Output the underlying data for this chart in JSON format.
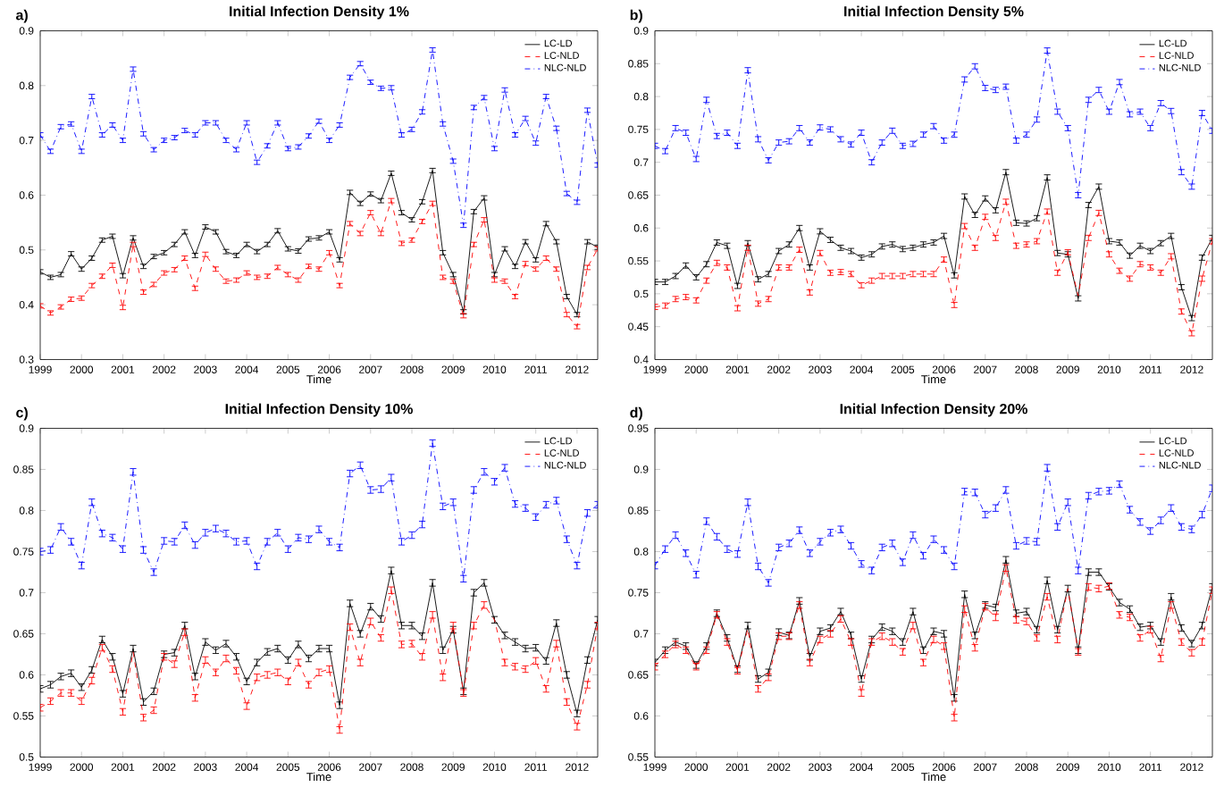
{
  "chart_data": [
    {
      "type": "line",
      "title": "Initial Infection Density 1%",
      "xlabel": "Time",
      "annotations": [
        "a)"
      ],
      "legend": "top right",
      "x": [
        1999,
        1999.25,
        1999.5,
        1999.75,
        2000,
        2000.25,
        2000.5,
        2000.75,
        2001,
        2001.25,
        2001.5,
        2001.75,
        2002,
        2002.25,
        2002.5,
        2002.75,
        2003,
        2003.25,
        2003.5,
        2003.75,
        2004,
        2004.25,
        2004.5,
        2004.75,
        2005,
        2005.25,
        2005.5,
        2005.75,
        2006,
        2006.25,
        2006.5,
        2006.75,
        2007,
        2007.25,
        2007.5,
        2007.75,
        2008,
        2008.25,
        2008.5,
        2008.75,
        2009,
        2009.25,
        2009.5,
        2009.75,
        2010,
        2010.25,
        2010.5,
        2010.75,
        2011,
        2011.25,
        2011.5,
        2011.75,
        2012,
        2012.25,
        2012.5
      ],
      "xlim": [
        1999,
        2012.5
      ],
      "ylim": [
        0.3,
        0.9
      ],
      "xticks": [
        1999,
        2000,
        2001,
        2002,
        2003,
        2004,
        2005,
        2006,
        2007,
        2008,
        2009,
        2010,
        2011,
        2012
      ],
      "yticks": [
        0.3,
        0.4,
        0.5,
        0.6,
        0.7,
        0.8,
        0.9
      ],
      "series": [
        {
          "name": "LC-LD",
          "color": "#000000",
          "line_style": "solid",
          "values": [
            0.46,
            0.45,
            0.455,
            0.493,
            0.465,
            0.485,
            0.518,
            0.525,
            0.453,
            0.522,
            0.47,
            0.488,
            0.495,
            0.51,
            0.533,
            0.49,
            0.542,
            0.533,
            0.497,
            0.49,
            0.51,
            0.497,
            0.51,
            0.535,
            0.502,
            0.498,
            0.52,
            0.522,
            0.533,
            0.482,
            0.605,
            0.585,
            0.602,
            0.59,
            0.64,
            0.568,
            0.555,
            0.588,
            0.645,
            0.495,
            0.455,
            0.387,
            0.57,
            0.595,
            0.455,
            0.502,
            0.47,
            0.515,
            0.482,
            0.548,
            0.515,
            0.415,
            0.382,
            0.515,
            0.505
          ],
          "errors": [
            0.004,
            0.004,
            0.004,
            0.004,
            0.004,
            0.004,
            0.004,
            0.004,
            0.004,
            0.004,
            0.004,
            0.004,
            0.004,
            0.004,
            0.004,
            0.004,
            0.004,
            0.004,
            0.004,
            0.004,
            0.004,
            0.004,
            0.004,
            0.004,
            0.004,
            0.004,
            0.004,
            0.004,
            0.004,
            0.004,
            0.004,
            0.004,
            0.004,
            0.004,
            0.004,
            0.004,
            0.004,
            0.004,
            0.004,
            0.004,
            0.004,
            0.004,
            0.004,
            0.004,
            0.004,
            0.004,
            0.004,
            0.004,
            0.004,
            0.004,
            0.004,
            0.004,
            0.004,
            0.004,
            0.004
          ]
        },
        {
          "name": "LC-NLD",
          "color": "#ff0000",
          "line_style": "dashed",
          "values": [
            0.398,
            0.385,
            0.396,
            0.41,
            0.412,
            0.435,
            0.452,
            0.472,
            0.395,
            0.51,
            0.423,
            0.437,
            0.458,
            0.464,
            0.485,
            0.43,
            0.492,
            0.465,
            0.443,
            0.445,
            0.458,
            0.45,
            0.452,
            0.468,
            0.455,
            0.445,
            0.47,
            0.465,
            0.495,
            0.435,
            0.548,
            0.53,
            0.568,
            0.53,
            0.59,
            0.512,
            0.518,
            0.552,
            0.585,
            0.45,
            0.443,
            0.38,
            0.51,
            0.555,
            0.445,
            0.443,
            0.415,
            0.475,
            0.465,
            0.485,
            0.465,
            0.382,
            0.36,
            0.468,
            0.502
          ],
          "errors": [
            0.004,
            0.004,
            0.004,
            0.004,
            0.004,
            0.004,
            0.004,
            0.004,
            0.004,
            0.004,
            0.004,
            0.004,
            0.004,
            0.004,
            0.004,
            0.004,
            0.004,
            0.004,
            0.004,
            0.004,
            0.004,
            0.004,
            0.004,
            0.004,
            0.004,
            0.004,
            0.004,
            0.004,
            0.004,
            0.004,
            0.004,
            0.004,
            0.004,
            0.004,
            0.004,
            0.004,
            0.004,
            0.004,
            0.004,
            0.004,
            0.004,
            0.004,
            0.004,
            0.004,
            0.004,
            0.004,
            0.004,
            0.004,
            0.004,
            0.004,
            0.004,
            0.004,
            0.004,
            0.004,
            0.004
          ]
        },
        {
          "name": "NLC-NLD",
          "color": "#0000ff",
          "line_style": "dashdot",
          "values": [
            0.71,
            0.68,
            0.725,
            0.73,
            0.68,
            0.78,
            0.71,
            0.728,
            0.7,
            0.83,
            0.712,
            0.683,
            0.7,
            0.705,
            0.718,
            0.71,
            0.732,
            0.732,
            0.7,
            0.683,
            0.732,
            0.66,
            0.69,
            0.732,
            0.685,
            0.688,
            0.708,
            0.735,
            0.7,
            0.728,
            0.815,
            0.84,
            0.806,
            0.795,
            0.796,
            0.71,
            0.72,
            0.752,
            0.865,
            0.73,
            0.662,
            0.545,
            0.76,
            0.778,
            0.685,
            0.792,
            0.71,
            0.74,
            0.695,
            0.78,
            0.722,
            0.603,
            0.587,
            0.755,
            0.655
          ],
          "errors": [
            0.004,
            0.004,
            0.004,
            0.004,
            0.004,
            0.004,
            0.004,
            0.004,
            0.004,
            0.004,
            0.004,
            0.004,
            0.004,
            0.004,
            0.004,
            0.004,
            0.004,
            0.004,
            0.004,
            0.004,
            0.004,
            0.004,
            0.004,
            0.004,
            0.004,
            0.004,
            0.004,
            0.004,
            0.004,
            0.004,
            0.004,
            0.004,
            0.004,
            0.004,
            0.004,
            0.004,
            0.004,
            0.004,
            0.004,
            0.004,
            0.004,
            0.004,
            0.004,
            0.004,
            0.004,
            0.004,
            0.004,
            0.004,
            0.004,
            0.004,
            0.004,
            0.004,
            0.004,
            0.004,
            0.004
          ]
        }
      ]
    },
    {
      "type": "line",
      "title": "Initial Infection Density 5%",
      "xlabel": "Time",
      "annotations": [
        "b)"
      ],
      "legend": "top right",
      "x": [
        1999,
        1999.25,
        1999.5,
        1999.75,
        2000,
        2000.25,
        2000.5,
        2000.75,
        2001,
        2001.25,
        2001.5,
        2001.75,
        2002,
        2002.25,
        2002.5,
        2002.75,
        2003,
        2003.25,
        2003.5,
        2003.75,
        2004,
        2004.25,
        2004.5,
        2004.75,
        2005,
        2005.25,
        2005.5,
        2005.75,
        2006,
        2006.25,
        2006.5,
        2006.75,
        2007,
        2007.25,
        2007.5,
        2007.75,
        2008,
        2008.25,
        2008.5,
        2008.75,
        2009,
        2009.25,
        2009.5,
        2009.75,
        2010,
        2010.25,
        2010.5,
        2010.75,
        2011,
        2011.25,
        2011.5,
        2011.75,
        2012,
        2012.25,
        2012.5
      ],
      "xlim": [
        1999,
        2012.5
      ],
      "ylim": [
        0.4,
        0.9
      ],
      "xticks": [
        1999,
        2000,
        2001,
        2002,
        2003,
        2004,
        2005,
        2006,
        2007,
        2008,
        2009,
        2010,
        2011,
        2012
      ],
      "yticks": [
        0.4,
        0.45,
        0.5,
        0.55,
        0.6,
        0.65,
        0.7,
        0.75,
        0.8,
        0.85,
        0.9
      ],
      "series": [
        {
          "name": "LC-LD",
          "color": "#000000",
          "line_style": "solid",
          "values": [
            0.518,
            0.518,
            0.527,
            0.543,
            0.525,
            0.545,
            0.578,
            0.573,
            0.512,
            0.577,
            0.522,
            0.53,
            0.565,
            0.575,
            0.6,
            0.54,
            0.595,
            0.582,
            0.57,
            0.565,
            0.555,
            0.56,
            0.572,
            0.575,
            0.568,
            0.57,
            0.575,
            0.578,
            0.588,
            0.528,
            0.648,
            0.62,
            0.645,
            0.627,
            0.685,
            0.608,
            0.607,
            0.615,
            0.677,
            0.562,
            0.56,
            0.493,
            0.635,
            0.663,
            0.58,
            0.578,
            0.558,
            0.573,
            0.565,
            0.577,
            0.588,
            0.51,
            0.463,
            0.555,
            0.585
          ],
          "errors": [
            0.004,
            0.004,
            0.004,
            0.004,
            0.004,
            0.004,
            0.004,
            0.004,
            0.004,
            0.004,
            0.004,
            0.004,
            0.004,
            0.004,
            0.004,
            0.004,
            0.004,
            0.004,
            0.004,
            0.004,
            0.004,
            0.004,
            0.004,
            0.004,
            0.004,
            0.004,
            0.004,
            0.004,
            0.004,
            0.004,
            0.004,
            0.004,
            0.004,
            0.004,
            0.004,
            0.004,
            0.004,
            0.004,
            0.004,
            0.004,
            0.004,
            0.004,
            0.004,
            0.004,
            0.004,
            0.004,
            0.004,
            0.004,
            0.004,
            0.004,
            0.004,
            0.004,
            0.004,
            0.004,
            0.004
          ]
        },
        {
          "name": "LC-NLD",
          "color": "#ff0000",
          "line_style": "dashed",
          "values": [
            0.48,
            0.482,
            0.492,
            0.495,
            0.49,
            0.52,
            0.547,
            0.54,
            0.478,
            0.57,
            0.485,
            0.492,
            0.54,
            0.54,
            0.567,
            0.502,
            0.562,
            0.532,
            0.533,
            0.53,
            0.513,
            0.52,
            0.527,
            0.527,
            0.527,
            0.53,
            0.53,
            0.53,
            0.552,
            0.483,
            0.603,
            0.57,
            0.617,
            0.585,
            0.64,
            0.573,
            0.575,
            0.58,
            0.625,
            0.532,
            0.563,
            0.497,
            0.585,
            0.623,
            0.56,
            0.535,
            0.523,
            0.545,
            0.54,
            0.532,
            0.557,
            0.473,
            0.44,
            0.523,
            0.58
          ],
          "errors": [
            0.004,
            0.004,
            0.004,
            0.004,
            0.004,
            0.004,
            0.004,
            0.004,
            0.004,
            0.004,
            0.004,
            0.004,
            0.004,
            0.004,
            0.004,
            0.004,
            0.004,
            0.004,
            0.004,
            0.004,
            0.004,
            0.004,
            0.004,
            0.004,
            0.004,
            0.004,
            0.004,
            0.004,
            0.004,
            0.004,
            0.004,
            0.004,
            0.004,
            0.004,
            0.004,
            0.004,
            0.004,
            0.004,
            0.004,
            0.004,
            0.004,
            null,
            0.004,
            0.004,
            0.004,
            0.004,
            0.004,
            0.004,
            0.004,
            0.004,
            0.004,
            0.004,
            0.004,
            0.004,
            0.004
          ]
        },
        {
          "name": "NLC-NLD",
          "color": "#0000ff",
          "line_style": "dashdot",
          "values": [
            0.725,
            0.717,
            0.752,
            0.745,
            0.705,
            0.795,
            0.74,
            0.745,
            0.725,
            0.84,
            0.735,
            0.703,
            0.73,
            0.732,
            0.752,
            0.73,
            0.753,
            0.75,
            0.735,
            0.727,
            0.745,
            0.7,
            0.73,
            0.748,
            0.725,
            0.728,
            0.742,
            0.755,
            0.733,
            0.742,
            0.826,
            0.846,
            0.813,
            0.81,
            0.815,
            0.733,
            0.742,
            0.765,
            0.87,
            0.777,
            0.752,
            0.65,
            0.795,
            0.81,
            0.777,
            0.822,
            0.773,
            0.777,
            0.752,
            0.79,
            0.778,
            0.685,
            0.663,
            0.775,
            0.748
          ],
          "errors": [
            0.004,
            0.004,
            0.004,
            0.004,
            0.004,
            0.004,
            0.004,
            0.004,
            0.004,
            0.004,
            0.004,
            0.004,
            0.004,
            0.004,
            0.004,
            0.004,
            0.004,
            0.004,
            0.004,
            0.004,
            0.004,
            0.004,
            0.004,
            0.004,
            0.004,
            0.004,
            0.004,
            0.004,
            0.004,
            0.004,
            0.004,
            0.004,
            0.004,
            0.004,
            0.004,
            0.004,
            0.004,
            0.004,
            0.004,
            0.004,
            0.004,
            0.004,
            0.004,
            0.004,
            0.004,
            0.004,
            0.004,
            0.004,
            0.004,
            0.004,
            0.004,
            0.004,
            0.004,
            0.004,
            0.004
          ]
        }
      ]
    },
    {
      "type": "line",
      "title": "Initial Infection Density 10%",
      "xlabel": "Time",
      "annotations": [
        "c)"
      ],
      "legend": "top right",
      "x": [
        1999,
        1999.25,
        1999.5,
        1999.75,
        2000,
        2000.25,
        2000.5,
        2000.75,
        2001,
        2001.25,
        2001.5,
        2001.75,
        2002,
        2002.25,
        2002.5,
        2002.75,
        2003,
        2003.25,
        2003.5,
        2003.75,
        2004,
        2004.25,
        2004.5,
        2004.75,
        2005,
        2005.25,
        2005.5,
        2005.75,
        2006,
        2006.25,
        2006.5,
        2006.75,
        2007,
        2007.25,
        2007.5,
        2007.75,
        2008,
        2008.25,
        2008.5,
        2008.75,
        2009,
        2009.25,
        2009.5,
        2009.75,
        2010,
        2010.25,
        2010.5,
        2010.75,
        2011,
        2011.25,
        2011.5,
        2011.75,
        2012,
        2012.25,
        2012.5
      ],
      "xlim": [
        1999,
        2012.5
      ],
      "ylim": [
        0.5,
        0.9
      ],
      "xticks": [
        1999,
        2000,
        2001,
        2002,
        2003,
        2004,
        2005,
        2006,
        2007,
        2008,
        2009,
        2010,
        2011,
        2012
      ],
      "yticks": [
        0.5,
        0.55,
        0.6,
        0.65,
        0.7,
        0.75,
        0.8,
        0.85,
        0.9
      ],
      "series": [
        {
          "name": "LC-LD",
          "color": "#000000",
          "line_style": "solid",
          "values": [
            0.583,
            0.588,
            0.598,
            0.602,
            0.585,
            0.606,
            0.643,
            0.622,
            0.577,
            0.632,
            0.567,
            0.58,
            0.625,
            0.627,
            0.66,
            0.598,
            0.64,
            0.63,
            0.638,
            0.622,
            0.592,
            0.615,
            0.628,
            0.632,
            0.618,
            0.637,
            0.62,
            0.632,
            0.632,
            0.563,
            0.687,
            0.65,
            0.683,
            0.668,
            0.727,
            0.66,
            0.66,
            0.647,
            0.712,
            0.63,
            0.655,
            0.58,
            0.7,
            0.712,
            0.667,
            0.648,
            0.64,
            0.632,
            0.633,
            0.617,
            0.663,
            0.6,
            0.553,
            0.618,
            0.667
          ],
          "errors": [
            0.004,
            0.004,
            0.004,
            0.004,
            0.004,
            0.004,
            0.004,
            0.004,
            0.004,
            0.004,
            0.004,
            0.004,
            0.004,
            0.004,
            0.004,
            0.004,
            0.004,
            0.004,
            0.004,
            0.004,
            0.004,
            0.004,
            0.004,
            0.004,
            0.004,
            0.004,
            0.004,
            0.004,
            0.004,
            0.004,
            0.004,
            0.004,
            0.004,
            0.004,
            0.004,
            0.004,
            0.004,
            0.004,
            0.004,
            0.004,
            0.004,
            0.004,
            0.004,
            0.004,
            0.004,
            0.004,
            0.004,
            0.004,
            0.004,
            0.004,
            0.004,
            0.004,
            0.004,
            0.004,
            0.004
          ]
        },
        {
          "name": "LC-NLD",
          "color": "#ff0000",
          "line_style": "dashed",
          "values": [
            0.56,
            0.568,
            0.578,
            0.578,
            0.568,
            0.593,
            0.633,
            0.607,
            0.555,
            0.628,
            0.548,
            0.557,
            0.622,
            0.613,
            0.652,
            0.572,
            0.618,
            0.603,
            0.62,
            0.605,
            0.562,
            0.597,
            0.6,
            0.603,
            0.592,
            0.615,
            0.588,
            0.603,
            0.607,
            0.533,
            0.658,
            0.615,
            0.665,
            0.645,
            0.703,
            0.637,
            0.638,
            0.622,
            0.673,
            0.597,
            0.66,
            0.578,
            0.66,
            0.685,
            0.667,
            0.615,
            0.61,
            0.607,
            0.617,
            0.583,
            0.638,
            0.567,
            0.537,
            0.588,
            0.66
          ],
          "errors": [
            0.004,
            0.004,
            0.004,
            0.004,
            0.004,
            0.004,
            0.004,
            0.004,
            0.004,
            null,
            0.004,
            0.004,
            0.004,
            0.004,
            0.004,
            0.004,
            0.004,
            0.004,
            0.004,
            0.004,
            0.004,
            0.004,
            0.004,
            0.004,
            0.004,
            0.004,
            0.004,
            0.004,
            0.004,
            0.004,
            0.004,
            0.004,
            0.004,
            0.004,
            0.004,
            0.004,
            0.004,
            0.004,
            0.004,
            0.004,
            0.004,
            0.004,
            0.004,
            0.004,
            null,
            0.004,
            0.004,
            0.004,
            0.004,
            0.004,
            0.004,
            0.004,
            0.004,
            0.004,
            0.004
          ]
        },
        {
          "name": "NLC-NLD",
          "color": "#0000ff",
          "line_style": "dashdot",
          "values": [
            0.75,
            0.752,
            0.78,
            0.762,
            0.733,
            0.81,
            0.772,
            0.767,
            0.753,
            0.847,
            0.752,
            0.725,
            0.763,
            0.762,
            0.782,
            0.758,
            0.773,
            0.778,
            0.772,
            0.762,
            0.763,
            0.732,
            0.762,
            0.773,
            0.753,
            0.767,
            0.765,
            0.777,
            0.762,
            0.755,
            0.845,
            0.855,
            0.825,
            0.826,
            0.84,
            0.762,
            0.77,
            0.783,
            0.882,
            0.805,
            0.81,
            0.717,
            0.825,
            0.847,
            0.835,
            0.852,
            0.808,
            0.803,
            0.792,
            0.807,
            0.812,
            0.765,
            0.733,
            0.797,
            0.807
          ],
          "errors": [
            0.004,
            0.004,
            0.004,
            0.004,
            0.004,
            0.004,
            0.004,
            0.004,
            0.004,
            0.004,
            0.004,
            0.004,
            0.004,
            0.004,
            0.004,
            0.004,
            0.004,
            0.004,
            0.004,
            0.004,
            0.004,
            0.004,
            0.004,
            0.004,
            0.004,
            0.004,
            0.004,
            0.004,
            0.004,
            0.004,
            0.004,
            0.004,
            0.004,
            0.004,
            0.004,
            0.004,
            0.004,
            0.004,
            0.004,
            0.004,
            0.004,
            0.004,
            0.004,
            0.004,
            0.004,
            0.004,
            0.004,
            0.004,
            0.004,
            0.004,
            0.004,
            0.004,
            0.004,
            0.004,
            0.004
          ]
        }
      ]
    },
    {
      "type": "line",
      "title": "Initial Infection Density 20%",
      "xlabel": "Time",
      "annotations": [
        "d)"
      ],
      "legend": "top right",
      "x": [
        1999,
        1999.25,
        1999.5,
        1999.75,
        2000,
        2000.25,
        2000.5,
        2000.75,
        2001,
        2001.25,
        2001.5,
        2001.75,
        2002,
        2002.25,
        2002.5,
        2002.75,
        2003,
        2003.25,
        2003.5,
        2003.75,
        2004,
        2004.25,
        2004.5,
        2004.75,
        2005,
        2005.25,
        2005.5,
        2005.75,
        2006,
        2006.25,
        2006.5,
        2006.75,
        2007,
        2007.25,
        2007.5,
        2007.75,
        2008,
        2008.25,
        2008.5,
        2008.75,
        2009,
        2009.25,
        2009.5,
        2009.75,
        2010,
        2010.25,
        2010.5,
        2010.75,
        2011,
        2011.25,
        2011.5,
        2011.75,
        2012,
        2012.25,
        2012.5
      ],
      "xlim": [
        1999,
        2012.5
      ],
      "ylim": [
        0.55,
        0.95
      ],
      "xticks": [
        1999,
        2000,
        2001,
        2002,
        2003,
        2004,
        2005,
        2006,
        2007,
        2008,
        2009,
        2010,
        2011,
        2012
      ],
      "yticks": [
        0.55,
        0.6,
        0.65,
        0.7,
        0.75,
        0.8,
        0.85,
        0.9,
        0.95
      ],
      "series": [
        {
          "name": "LC-LD",
          "color": "#000000",
          "line_style": "solid",
          "values": [
            0.665,
            0.68,
            0.69,
            0.685,
            0.662,
            0.685,
            0.725,
            0.695,
            0.657,
            0.71,
            0.645,
            0.653,
            0.702,
            0.698,
            0.74,
            0.672,
            0.703,
            0.707,
            0.727,
            0.698,
            0.645,
            0.693,
            0.708,
            0.703,
            0.69,
            0.727,
            0.68,
            0.703,
            0.7,
            0.622,
            0.748,
            0.698,
            0.735,
            0.732,
            0.79,
            0.725,
            0.727,
            0.705,
            0.765,
            0.705,
            0.755,
            0.68,
            0.775,
            0.775,
            0.757,
            0.738,
            0.73,
            0.708,
            0.71,
            0.69,
            0.745,
            0.707,
            0.688,
            0.71,
            0.757
          ],
          "errors": [
            0.004,
            0.004,
            0.004,
            0.004,
            0.004,
            0.004,
            0.004,
            0.004,
            0.004,
            0.004,
            0.004,
            0.004,
            0.004,
            0.004,
            0.004,
            0.004,
            0.004,
            0.004,
            0.004,
            0.004,
            0.004,
            0.004,
            0.004,
            0.004,
            0.004,
            0.004,
            0.004,
            0.004,
            0.004,
            0.004,
            0.004,
            0.004,
            0.004,
            0.004,
            0.004,
            0.004,
            0.004,
            0.004,
            0.004,
            0.004,
            0.004,
            0.004,
            0.004,
            0.004,
            0.004,
            0.004,
            0.004,
            0.004,
            0.004,
            0.004,
            0.004,
            0.004,
            0.004,
            0.004,
            0.004
          ]
        },
        {
          "name": "LC-NLD",
          "color": "#ff0000",
          "line_style": "dashed",
          "values": [
            0.66,
            0.675,
            0.687,
            0.68,
            0.66,
            0.68,
            0.723,
            0.69,
            0.655,
            0.706,
            0.633,
            0.647,
            0.697,
            0.697,
            0.735,
            0.665,
            0.693,
            0.7,
            0.718,
            0.69,
            0.628,
            0.69,
            0.697,
            0.69,
            0.678,
            0.71,
            0.665,
            0.693,
            0.685,
            0.598,
            0.73,
            0.683,
            0.733,
            0.72,
            0.78,
            0.717,
            0.715,
            0.695,
            0.745,
            0.693,
            0.755,
            0.678,
            0.757,
            0.755,
            0.758,
            0.723,
            0.72,
            0.695,
            0.705,
            0.67,
            0.735,
            0.69,
            0.677,
            0.69,
            0.753
          ],
          "errors": [
            0.004,
            0.004,
            0.004,
            0.004,
            0.004,
            0.004,
            0.004,
            0.004,
            0.004,
            null,
            0.004,
            0.004,
            0.004,
            0.004,
            0.004,
            0.004,
            0.004,
            0.004,
            0.004,
            0.004,
            0.004,
            0.004,
            0.004,
            0.004,
            0.004,
            0.004,
            0.004,
            0.004,
            0.004,
            0.004,
            0.004,
            0.004,
            0.004,
            0.004,
            0.004,
            0.004,
            0.004,
            0.004,
            0.004,
            0.004,
            null,
            0.004,
            0.004,
            0.004,
            0.004,
            0.004,
            0.004,
            0.004,
            0.004,
            0.004,
            0.004,
            0.004,
            0.004,
            0.004,
            0.004
          ]
        },
        {
          "name": "NLC-NLD",
          "color": "#0000ff",
          "line_style": "dashdot",
          "values": [
            0.783,
            0.803,
            0.82,
            0.798,
            0.772,
            0.837,
            0.818,
            0.803,
            0.797,
            0.86,
            0.782,
            0.762,
            0.805,
            0.81,
            0.826,
            0.798,
            0.812,
            0.823,
            0.827,
            0.807,
            0.785,
            0.777,
            0.805,
            0.81,
            0.787,
            0.82,
            0.795,
            0.815,
            0.802,
            0.782,
            0.873,
            0.872,
            0.845,
            0.853,
            0.875,
            0.807,
            0.813,
            0.812,
            0.902,
            0.83,
            0.86,
            0.777,
            0.868,
            0.873,
            0.874,
            0.882,
            0.851,
            0.836,
            0.825,
            0.838,
            0.853,
            0.83,
            0.827,
            0.845,
            0.877
          ],
          "errors": [
            0.004,
            0.004,
            0.004,
            0.004,
            0.004,
            0.004,
            0.004,
            0.004,
            0.004,
            0.004,
            0.004,
            0.004,
            0.004,
            0.004,
            0.004,
            0.004,
            0.004,
            0.004,
            0.004,
            0.004,
            0.004,
            0.004,
            0.004,
            0.004,
            0.004,
            0.004,
            0.004,
            0.004,
            0.004,
            0.004,
            0.004,
            0.004,
            0.004,
            0.004,
            0.004,
            0.004,
            0.004,
            0.004,
            0.004,
            0.004,
            0.004,
            0.004,
            0.004,
            0.004,
            0.004,
            0.004,
            0.004,
            0.004,
            0.004,
            0.004,
            0.004,
            0.004,
            0.004,
            0.004,
            0.004
          ]
        }
      ]
    }
  ]
}
